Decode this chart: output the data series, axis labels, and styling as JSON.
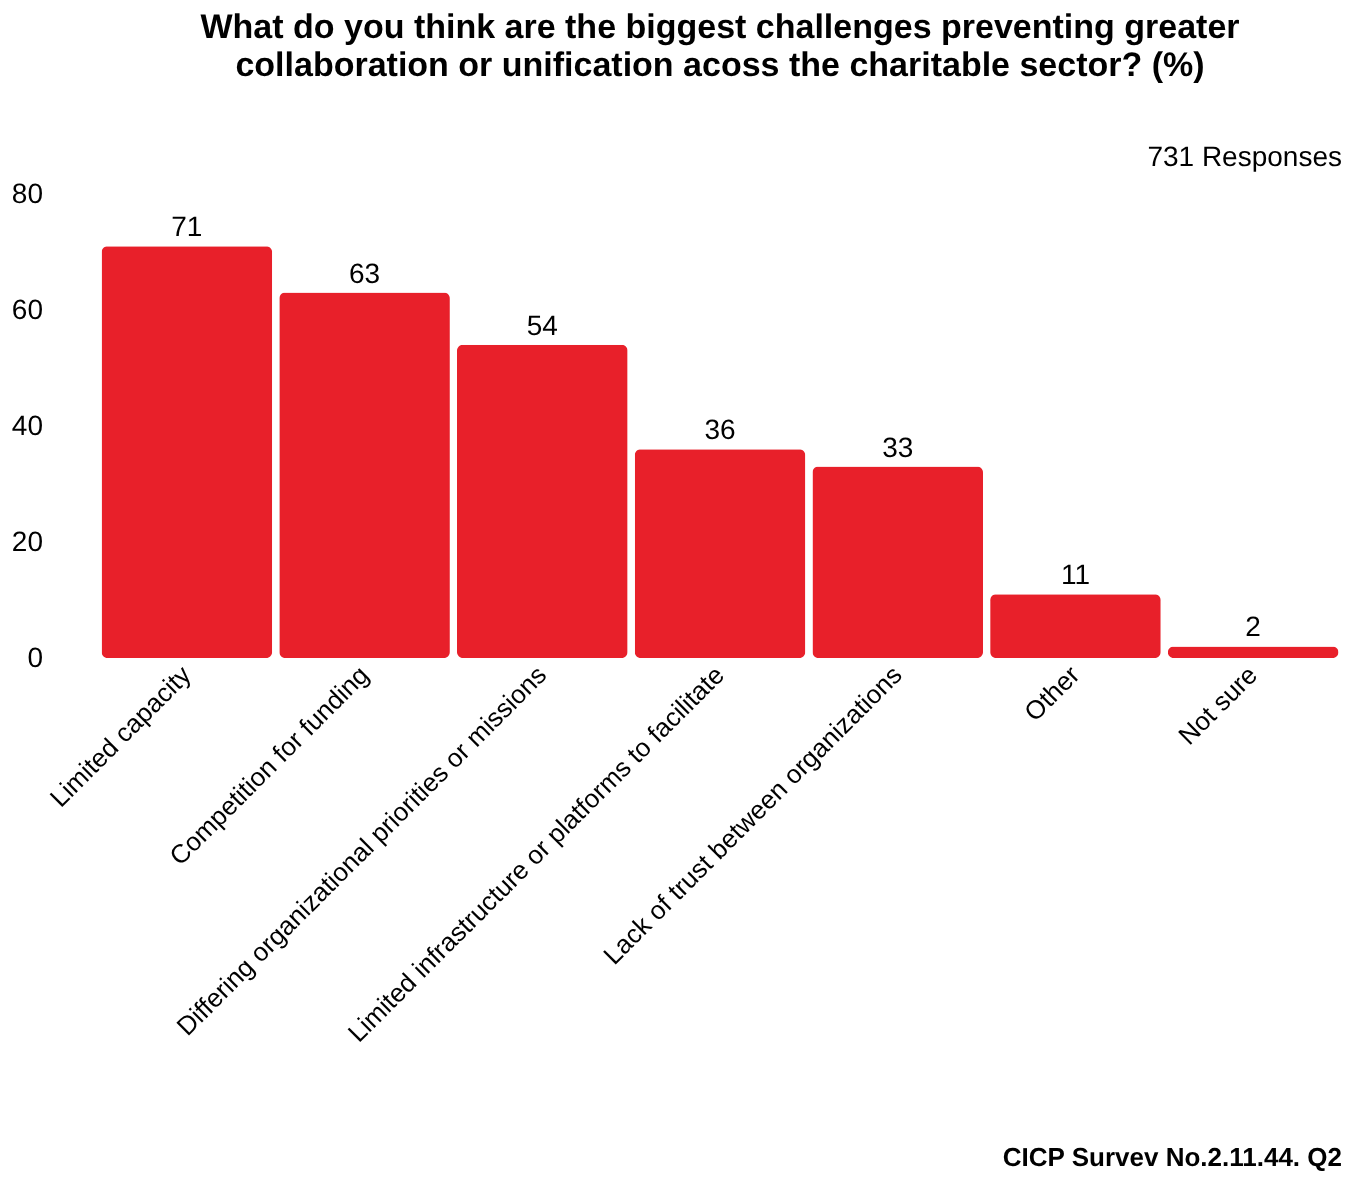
{
  "chart_data": {
    "type": "bar",
    "title": [
      "What do you think are the biggest challenges preventing greater",
      "collaboration or unification acoss the charitable sector? (%)"
    ],
    "categories": [
      "Limited capacity",
      "Competition for funding",
      "Differing organizational priorities or missions",
      "Limited infrastructure or platforms to facilitate",
      "Lack of trust between organizations",
      "Other",
      "Not sure"
    ],
    "values": [
      71,
      63,
      54,
      36,
      33,
      11,
      2
    ],
    "color": "#e8202a",
    "ylim": [
      0,
      80
    ],
    "yticks": [
      0,
      20,
      40,
      60,
      80
    ],
    "grid": false,
    "data_labels": true,
    "annotations": [
      "731 Responses",
      "CICP Survev No.2.11.44. Q2"
    ]
  }
}
